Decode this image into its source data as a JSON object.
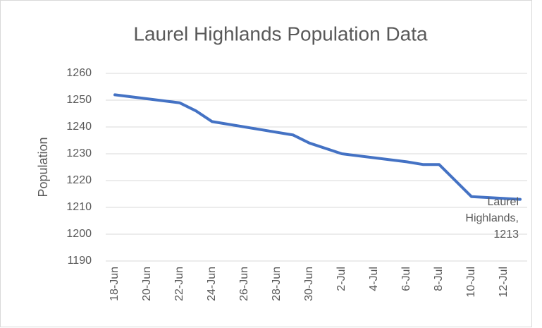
{
  "chart_data": {
    "type": "line",
    "title": "Laurel Highlands Population Data",
    "y_label": "Population",
    "x": [
      "18-Jun",
      "22-Jun",
      "23-Jun",
      "24-Jun",
      "29-Jun",
      "30-Jun",
      "2-Jul",
      "6-Jul",
      "7-Jul",
      "8-Jul",
      "10-Jul",
      "13-Jul"
    ],
    "series": [
      {
        "color": "#4472c4",
        "values": [
          1252,
          1249,
          1246,
          1242,
          1237,
          1234,
          1230,
          1227,
          1226,
          1226,
          1214,
          1213
        ]
      }
    ],
    "data_label": [
      "Laurel",
      "Highlands,"
    ],
    "xticks": [
      "18-Jun",
      "20-Jun",
      "22-Jun",
      "24-Jun",
      "26-Jun",
      "28-Jun",
      "30-Jun",
      "2-Jul",
      "4-Jul",
      "6-Jul",
      "8-Jul",
      "10-Jul",
      "12-Jul"
    ],
    "ylim": [
      1190,
      1260
    ],
    "yticks": [
      1190,
      1200,
      1210,
      1220,
      1230,
      1240,
      1250,
      1260
    ],
    "grid": true
  }
}
